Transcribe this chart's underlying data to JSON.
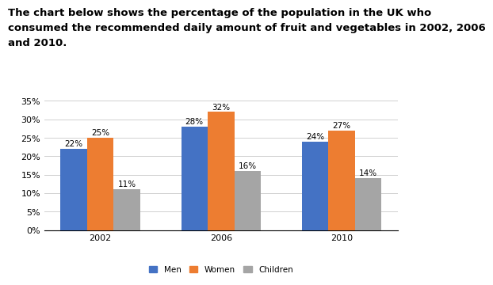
{
  "title_line1": "The chart below shows the percentage of the population in the UK who",
  "title_line2": "consumed the recommended daily amount of fruit and vegetables in 2002, 2006",
  "title_line3": "and 2010.",
  "years": [
    "2002",
    "2006",
    "2010"
  ],
  "categories": [
    "Men",
    "Women",
    "Children"
  ],
  "values": {
    "Men": [
      22,
      28,
      24
    ],
    "Women": [
      25,
      32,
      27
    ],
    "Children": [
      11,
      16,
      14
    ]
  },
  "colors": {
    "Men": "#4472C4",
    "Women": "#ED7D31",
    "Children": "#A5A5A5"
  },
  "ylim": [
    0,
    35
  ],
  "yticks": [
    0,
    5,
    10,
    15,
    20,
    25,
    30,
    35
  ],
  "ytick_labels": [
    "0%",
    "5%",
    "10%",
    "15%",
    "20%",
    "25%",
    "30%",
    "35%"
  ],
  "bar_width": 0.22,
  "background_color": "#ffffff",
  "grid_color": "#d0d0d0",
  "title_fontsize": 9.5,
  "axis_fontsize": 8,
  "label_fontsize": 7.5,
  "legend_fontsize": 7.5
}
